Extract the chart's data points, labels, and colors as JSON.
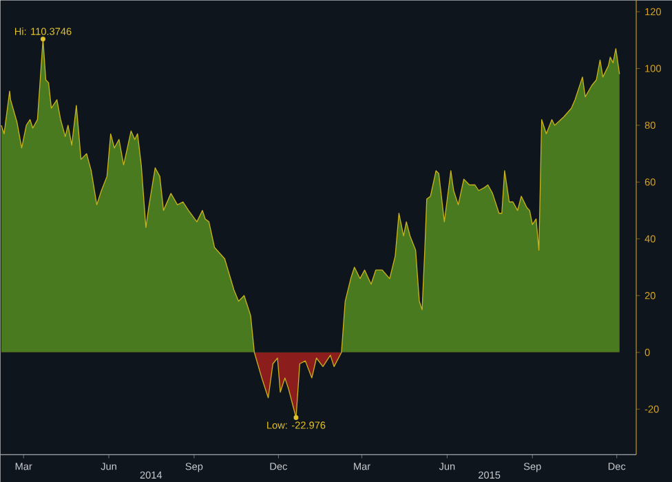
{
  "chart_data": {
    "type": "area",
    "x": [
      "2014-02-05",
      "2014-02-08",
      "2014-02-14",
      "2014-02-15",
      "2014-02-22",
      "2014-02-27",
      "2014-03-04",
      "2014-03-08",
      "2014-03-11",
      "2014-03-16",
      "2014-03-22",
      "2014-03-25",
      "2014-03-28",
      "2014-03-31",
      "2014-04-06",
      "2014-04-10",
      "2014-04-15",
      "2014-04-18",
      "2014-04-22",
      "2014-04-27",
      "2014-05-02",
      "2014-05-08",
      "2014-05-13",
      "2014-05-19",
      "2014-05-24",
      "2014-05-30",
      "2014-06-03",
      "2014-06-07",
      "2014-06-12",
      "2014-06-17",
      "2014-06-25",
      "2014-06-29",
      "2014-07-02",
      "2014-07-06",
      "2014-07-11",
      "2014-07-14",
      "2014-07-21",
      "2014-07-26",
      "2014-07-30",
      "2014-08-07",
      "2014-08-14",
      "2014-08-20",
      "2014-08-26",
      "2014-09-04",
      "2014-09-10",
      "2014-09-13",
      "2014-09-17",
      "2014-09-23",
      "2014-10-04",
      "2014-10-14",
      "2014-10-19",
      "2014-10-25",
      "2014-11-01",
      "2014-11-05",
      "2014-11-13",
      "2014-11-20",
      "2014-11-25",
      "2014-11-30",
      "2014-12-03",
      "2014-12-08",
      "2014-12-12",
      "2014-12-20",
      "2014-12-24",
      "2014-12-30",
      "2015-01-06",
      "2015-01-11",
      "2015-01-18",
      "2015-01-26",
      "2015-01-30",
      "2015-02-07",
      "2015-02-11",
      "2015-02-17",
      "2015-02-21",
      "2015-02-27",
      "2015-03-04",
      "2015-03-11",
      "2015-03-16",
      "2015-03-23",
      "2015-03-31",
      "2015-04-06",
      "2015-04-10",
      "2015-04-15",
      "2015-04-18",
      "2015-04-22",
      "2015-04-28",
      "2015-05-02",
      "2015-05-05",
      "2015-05-08",
      "2015-05-10",
      "2015-05-14",
      "2015-05-20",
      "2015-05-23",
      "2015-05-29",
      "2015-06-05",
      "2015-06-08",
      "2015-06-13",
      "2015-06-19",
      "2015-06-25",
      "2015-07-01",
      "2015-07-05",
      "2015-07-11",
      "2015-07-15",
      "2015-07-20",
      "2015-07-27",
      "2015-07-30",
      "2015-08-02",
      "2015-08-07",
      "2015-08-11",
      "2015-08-16",
      "2015-08-20",
      "2015-08-26",
      "2015-08-29",
      "2015-09-01",
      "2015-09-05",
      "2015-09-08",
      "2015-09-11",
      "2015-09-16",
      "2015-09-22",
      "2015-09-25",
      "2015-10-05",
      "2015-10-13",
      "2015-10-17",
      "2015-10-25",
      "2015-10-28",
      "2015-11-04",
      "2015-11-09",
      "2015-11-13",
      "2015-11-16",
      "2015-11-22",
      "2015-11-24",
      "2015-11-27",
      "2015-11-30",
      "2015-12-04"
    ],
    "series": [
      {
        "color": "#4a7a1f",
        "values": [
          80,
          77,
          92,
          89,
          81,
          72,
          80,
          82,
          79,
          82,
          110.3746,
          96,
          95,
          86,
          89,
          82,
          76,
          80,
          73,
          87,
          68,
          70,
          64,
          52,
          57,
          62,
          77,
          72,
          75,
          66,
          78,
          75,
          77,
          66,
          44,
          51,
          65,
          62,
          50,
          56,
          52,
          53,
          50,
          46,
          50,
          47,
          46,
          37,
          33,
          22,
          18,
          20,
          13,
          0,
          -9,
          -16,
          -4,
          -2,
          -14,
          -9,
          -13,
          -22.976,
          -4,
          -3,
          -9,
          -2,
          -5,
          -1,
          -5,
          0,
          18,
          26,
          30,
          26,
          29,
          24,
          29,
          29,
          26,
          34,
          49,
          41,
          46,
          41,
          36,
          18,
          15,
          37,
          54,
          55,
          64,
          63,
          46,
          64,
          57,
          52,
          61,
          59,
          59,
          57,
          58,
          59,
          56,
          49,
          49,
          64,
          53,
          53,
          50,
          55,
          51,
          50,
          45,
          47,
          36,
          82,
          77,
          82,
          80,
          83,
          86,
          89,
          97,
          90,
          94,
          96,
          103,
          97,
          101,
          104,
          102,
          107,
          98
        ]
      }
    ],
    "xlim": [
      "2014-02-04",
      "2015-12-22"
    ],
    "xticks": [
      {
        "value": "2014-03-01",
        "label": "Mar"
      },
      {
        "value": "2014-06-01",
        "label": "Jun"
      },
      {
        "value": "2014-09-01",
        "label": "Sep"
      },
      {
        "value": "2014-12-01",
        "label": "Dec"
      },
      {
        "value": "2015-03-01",
        "label": "Mar"
      },
      {
        "value": "2015-06-01",
        "label": "Jun"
      },
      {
        "value": "2015-09-01",
        "label": "Sep"
      },
      {
        "value": "2015-12-01",
        "label": "Dec"
      }
    ],
    "ylim": [
      -36,
      124
    ],
    "yticks": [
      -20,
      0,
      20,
      40,
      60,
      80,
      100,
      120
    ],
    "annotations": [
      {
        "text": "Hi: 110.3746",
        "x": "2014-03-22",
        "y": 110.3746
      },
      {
        "text": "Low: -22.976",
        "x": "2014-12-20",
        "y": -22.976
      },
      "2014",
      "2015"
    ]
  }
}
